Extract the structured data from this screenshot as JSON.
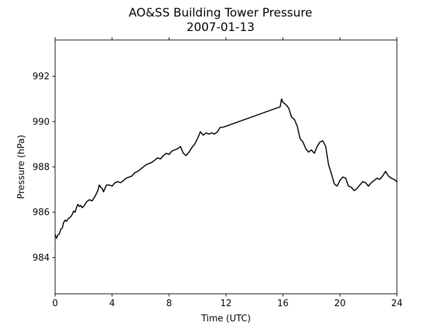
{
  "chart_data": {
    "type": "line",
    "title": "AO&SS Building Tower Pressure",
    "subtitle": "2007-01-13",
    "xlabel": "Time (UTC)",
    "ylabel": "Pressure (hPa)",
    "xlim": [
      0,
      24
    ],
    "ylim": [
      982.4,
      993.6
    ],
    "xticks": [
      0,
      4,
      8,
      12,
      16,
      20,
      24
    ],
    "xtick_labels": [
      "0",
      "4",
      "8",
      "12",
      "16",
      "20",
      "24"
    ],
    "yticks": [
      984,
      986,
      988,
      990,
      992
    ],
    "ytick_labels": [
      "984",
      "986",
      "988",
      "990",
      "992"
    ],
    "grid": false,
    "series": [
      {
        "color": "#000000",
        "x": [
          0.0,
          0.1,
          0.2,
          0.3,
          0.4,
          0.5,
          0.6,
          0.7,
          0.8,
          0.9,
          1.0,
          1.1,
          1.2,
          1.3,
          1.4,
          1.5,
          1.6,
          1.7,
          1.8,
          1.9,
          2.0,
          2.2,
          2.4,
          2.6,
          2.8,
          3.0,
          3.1,
          3.2,
          3.3,
          3.4,
          3.5,
          3.6,
          3.8,
          4.0,
          4.2,
          4.4,
          4.6,
          4.8,
          5.0,
          5.2,
          5.4,
          5.6,
          5.8,
          6.0,
          6.2,
          6.4,
          6.6,
          6.8,
          7.0,
          7.2,
          7.4,
          7.6,
          7.8,
          8.0,
          8.2,
          8.4,
          8.6,
          8.8,
          9.0,
          9.2,
          9.4,
          9.6,
          9.8,
          10.0,
          10.2,
          10.4,
          10.6,
          10.8,
          11.0,
          11.2,
          11.4,
          11.6,
          11.8,
          15.8,
          15.9,
          16.0,
          16.2,
          16.4,
          16.6,
          16.8,
          17.0,
          17.2,
          17.4,
          17.6,
          17.8,
          18.0,
          18.2,
          18.4,
          18.6,
          18.8,
          19.0,
          19.2,
          19.4,
          19.6,
          19.8,
          20.0,
          20.2,
          20.4,
          20.6,
          20.8,
          21.0,
          21.2,
          21.4,
          21.6,
          21.8,
          22.0,
          22.2,
          22.4,
          22.6,
          22.8,
          23.0,
          23.2,
          23.4,
          23.6,
          23.8,
          24.0
        ],
        "y": [
          985.0,
          984.85,
          985.0,
          985.05,
          985.25,
          985.3,
          985.55,
          985.65,
          985.6,
          985.7,
          985.75,
          985.8,
          985.9,
          986.05,
          986.0,
          986.2,
          986.35,
          986.25,
          986.3,
          986.2,
          986.25,
          986.45,
          986.55,
          986.5,
          986.7,
          986.95,
          987.2,
          987.1,
          987.05,
          986.9,
          987.05,
          987.2,
          987.2,
          987.15,
          987.3,
          987.35,
          987.3,
          987.4,
          987.5,
          987.55,
          987.6,
          987.75,
          987.8,
          987.9,
          988.0,
          988.1,
          988.15,
          988.2,
          988.3,
          988.4,
          988.35,
          988.5,
          988.6,
          988.55,
          988.7,
          988.75,
          988.8,
          988.9,
          988.6,
          988.5,
          988.65,
          988.85,
          989.0,
          989.25,
          989.55,
          989.4,
          989.5,
          989.45,
          989.5,
          989.45,
          989.55,
          989.75,
          989.75,
          990.65,
          991.0,
          990.85,
          990.75,
          990.6,
          990.2,
          990.1,
          989.8,
          989.25,
          989.1,
          988.8,
          988.65,
          988.75,
          988.6,
          988.9,
          989.1,
          989.15,
          988.9,
          988.1,
          987.7,
          987.25,
          987.15,
          987.4,
          987.55,
          987.5,
          987.15,
          987.1,
          986.95,
          987.05,
          987.2,
          987.35,
          987.3,
          987.15,
          987.3,
          987.4,
          987.5,
          987.45,
          987.6,
          987.8,
          987.6,
          987.5,
          987.45,
          987.35
        ]
      }
    ]
  }
}
